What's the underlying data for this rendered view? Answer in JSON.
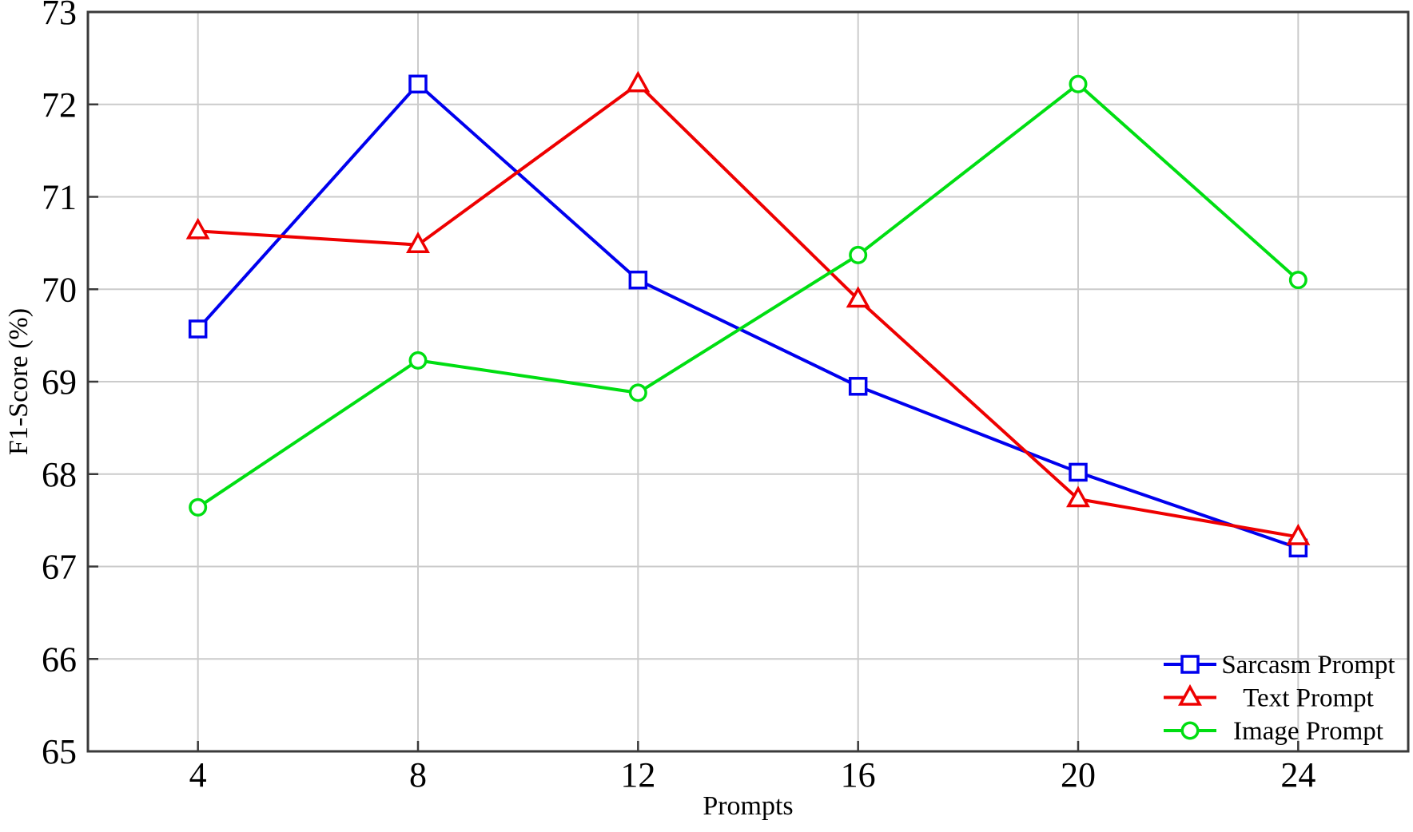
{
  "chart_data": {
    "type": "line",
    "title": "",
    "xlabel": "Prompts",
    "ylabel": "F1-Score (%)",
    "x": [
      4,
      8,
      12,
      16,
      20,
      24
    ],
    "xticks": [
      4,
      8,
      12,
      16,
      20,
      24
    ],
    "yticks": [
      65,
      66,
      67,
      68,
      69,
      70,
      71,
      72,
      73
    ],
    "xlim": [
      2,
      26
    ],
    "ylim": [
      65,
      73
    ],
    "grid": true,
    "legend_position": "lower-right",
    "legend_frame": false,
    "series": [
      {
        "name": "Sarcasm Prompt",
        "color": "#0000ee",
        "marker": "square",
        "values": [
          69.57,
          72.22,
          70.1,
          68.95,
          68.02,
          67.2
        ]
      },
      {
        "name": "Text Prompt",
        "color": "#ee0000",
        "marker": "triangle",
        "values": [
          70.63,
          70.48,
          72.22,
          69.89,
          67.73,
          67.32
        ]
      },
      {
        "name": "Image Prompt",
        "color": "#00de12",
        "marker": "circle",
        "values": [
          67.64,
          69.23,
          68.88,
          70.37,
          72.22,
          70.1
        ]
      }
    ]
  },
  "style": {
    "background": "#ffffff",
    "grid_color": "#cbcbcb",
    "frame_color": "#3a3a3a",
    "text_color": "#000000",
    "marker_fill": "#ffffff"
  }
}
